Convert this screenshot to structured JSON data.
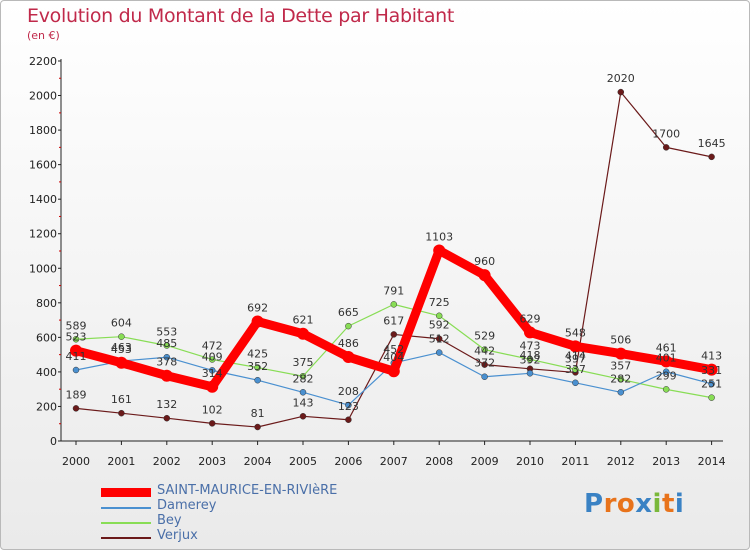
{
  "title": "Evolution du Montant de la Dette par Habitant",
  "subtitle": "(en €)",
  "logo_text": "Proxiti",
  "chart_data": {
    "type": "line",
    "x": [
      "2000",
      "2001",
      "2002",
      "2003",
      "2004",
      "2005",
      "2006",
      "2007",
      "2008",
      "2009",
      "2010",
      "2011",
      "2012",
      "2013",
      "2014"
    ],
    "ylim": [
      0,
      2200
    ],
    "yticks": [
      0,
      200,
      400,
      600,
      800,
      1000,
      1200,
      1400,
      1600,
      1800,
      2000,
      2200
    ],
    "grid": false,
    "legend_position": "bottom-left",
    "series": [
      {
        "name": "SAINT-MAURICE-EN-RIVIèRE",
        "color": "#ff0000",
        "values": [
          523,
          453,
          378,
          314,
          692,
          621,
          486,
          404,
          1103,
          960,
          629,
          548,
          506,
          461,
          413
        ]
      },
      {
        "name": "Damerey",
        "color": "#4a90d0",
        "values": [
          411,
          463,
          485,
          409,
          352,
          282,
          208,
          452,
          512,
          372,
          392,
          337,
          282,
          401,
          331
        ]
      },
      {
        "name": "Bey",
        "color": "#88dd55",
        "values": [
          589,
          604,
          553,
          472,
          425,
          375,
          665,
          791,
          725,
          529,
          473,
          414,
          357,
          299,
          251
        ]
      },
      {
        "name": "Verjux",
        "color": "#6b1a1a",
        "values": [
          189,
          161,
          132,
          102,
          81,
          143,
          123,
          617,
          592,
          442,
          418,
          397,
          2020,
          1700,
          1645
        ]
      }
    ]
  }
}
